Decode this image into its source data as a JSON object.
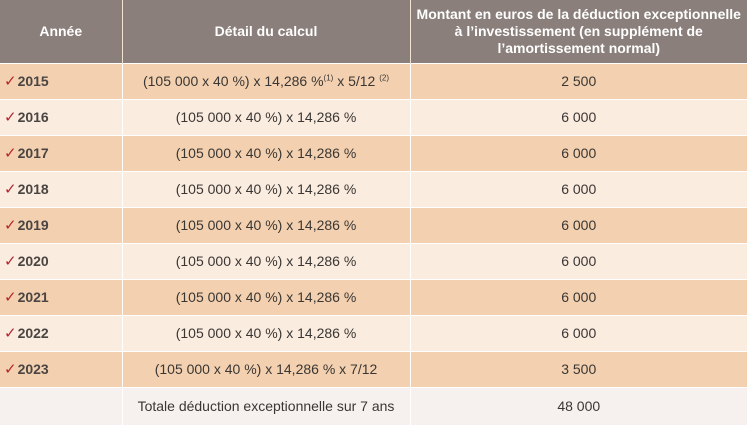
{
  "headers": {
    "year": "Année",
    "calc": "Détail du calcul",
    "amount": "Montant en euros de la déduction exceptionnelle à l’investissement (en supplément de l’amortissement normal)"
  },
  "check_glyph": "✓",
  "rows": [
    {
      "year": "2015",
      "calc_main": "(105 000 x 40 %) x 14,286 %",
      "calc_note1": "(1)",
      "calc_mid": " x 5/12 ",
      "calc_note2": "(2)",
      "amount": "2 500"
    },
    {
      "year": "2016",
      "calc": "(105 000 x 40 %) x 14,286 %",
      "amount": "6 000"
    },
    {
      "year": "2017",
      "calc": "(105 000 x 40 %) x 14,286 %",
      "amount": "6 000"
    },
    {
      "year": "2018",
      "calc": "(105 000 x 40 %) x 14,286 %",
      "amount": "6 000"
    },
    {
      "year": "2019",
      "calc": "(105 000 x 40 %) x 14,286 %",
      "amount": "6 000"
    },
    {
      "year": "2020",
      "calc": "(105 000 x 40 %) x 14,286 %",
      "amount": "6 000"
    },
    {
      "year": "2021",
      "calc": "(105 000 x 40 %) x 14,286 %",
      "amount": "6 000"
    },
    {
      "year": "2022",
      "calc": "(105 000 x 40 %) x 14,286 %",
      "amount": "6 000"
    },
    {
      "year": "2023",
      "calc": "(105 000 x 40 %) x 14,286 % x 7/12",
      "amount": "3 500"
    }
  ],
  "total": {
    "label": "Totale déduction exceptionnelle sur 7 ans",
    "amount": "48 000"
  },
  "colors": {
    "header_bg": "#8a7f7b",
    "row_odd_bg": "#f3d1b0",
    "row_even_bg": "#fbece0",
    "total_bg": "#f6f1ee",
    "check_red": "#b3262d"
  }
}
